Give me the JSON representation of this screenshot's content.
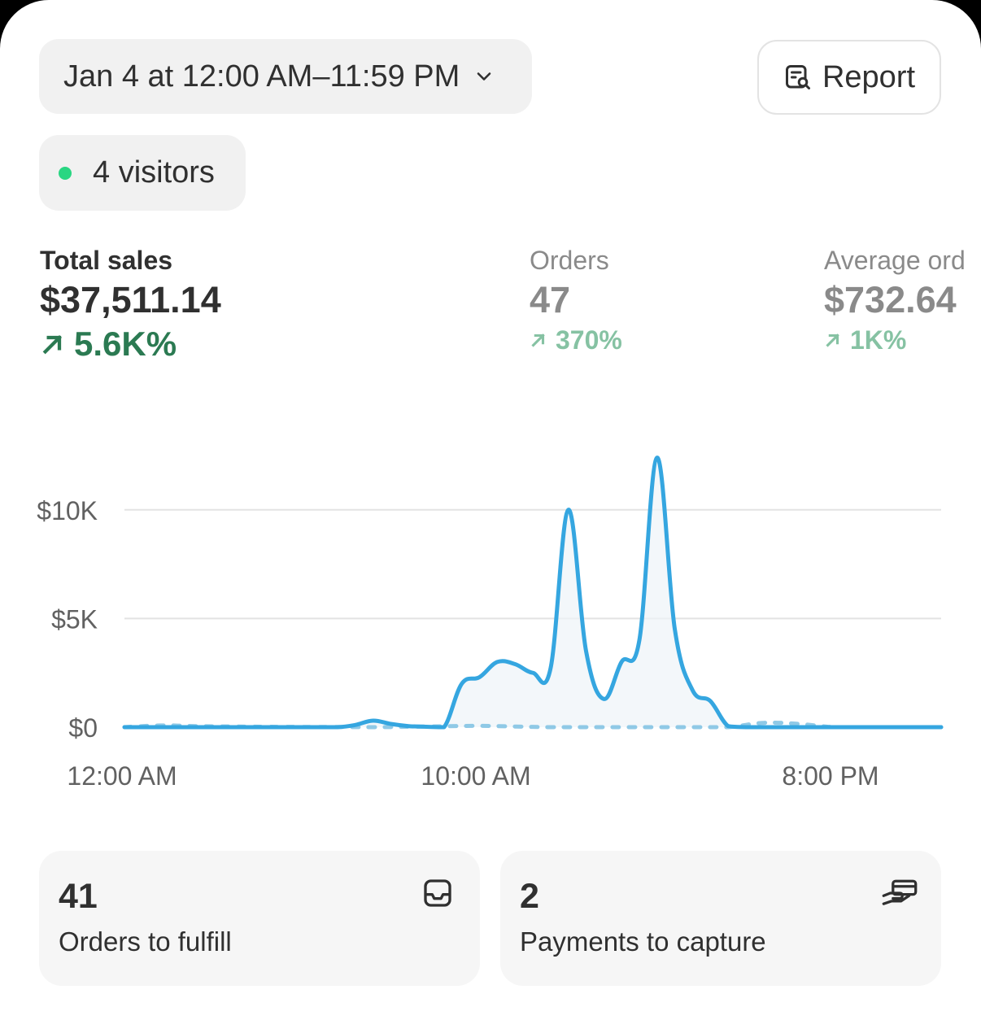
{
  "header": {
    "date_range_label": "Jan 4 at 12:00 AM–11:59 PM",
    "report_label": "Report"
  },
  "live": {
    "visitors_label": "4 visitors",
    "status_color": "#29d682"
  },
  "metrics": [
    {
      "label": "Total sales",
      "value": "$37,511.14",
      "change": "5.6K%",
      "direction": "up",
      "selected": true
    },
    {
      "label": "Orders",
      "value": "47",
      "change": "370%",
      "direction": "up",
      "selected": false
    },
    {
      "label": "Average ord",
      "value": "$732.64",
      "change": "1K%",
      "direction": "up",
      "selected": false
    }
  ],
  "chart_data": {
    "type": "line",
    "title": "",
    "xlabel": "",
    "ylabel": "",
    "x_ticks": [
      "12:00 AM",
      "10:00 AM",
      "8:00 PM"
    ],
    "y_ticks": [
      "$0",
      "$5K",
      "$10K"
    ],
    "ylim": [
      0,
      12500
    ],
    "grid": true,
    "series": [
      {
        "style": "solid",
        "color": "#35a6e0",
        "x": [
          0,
          1,
          2,
          3,
          4,
          5,
          6,
          6.5,
          7,
          7.5,
          8,
          8.5,
          9,
          9.5,
          10,
          10.5,
          11,
          11.5,
          12,
          12.5,
          13,
          13.5,
          14,
          14.5,
          15,
          15.5,
          16,
          16.5,
          17,
          17.5,
          18,
          18.5,
          19,
          20,
          21,
          22,
          23
        ],
        "y": [
          0,
          0,
          0,
          0,
          0,
          0,
          0,
          100,
          300,
          150,
          50,
          20,
          0,
          2000,
          2300,
          3000,
          2900,
          2500,
          2700,
          10000,
          3500,
          1300,
          3000,
          4000,
          12400,
          4500,
          1700,
          1200,
          50,
          0,
          0,
          0,
          0,
          0,
          0,
          0,
          0
        ]
      },
      {
        "style": "dashed",
        "color": "#8fc9e6",
        "x": [
          0,
          1,
          2,
          3,
          4,
          5,
          6,
          7,
          8,
          9,
          10,
          11,
          12,
          13,
          14,
          15,
          16,
          17,
          18,
          19,
          20,
          21,
          22,
          23
        ],
        "y": [
          0,
          80,
          50,
          30,
          20,
          10,
          10,
          0,
          20,
          40,
          60,
          30,
          0,
          0,
          0,
          0,
          0,
          0,
          200,
          150,
          0,
          0,
          0,
          0
        ]
      }
    ]
  },
  "cards": [
    {
      "value": "41",
      "label": "Orders to fulfill",
      "icon": "inbox-icon"
    },
    {
      "value": "2",
      "label": "Payments to capture",
      "icon": "payment-hand-icon"
    }
  ]
}
